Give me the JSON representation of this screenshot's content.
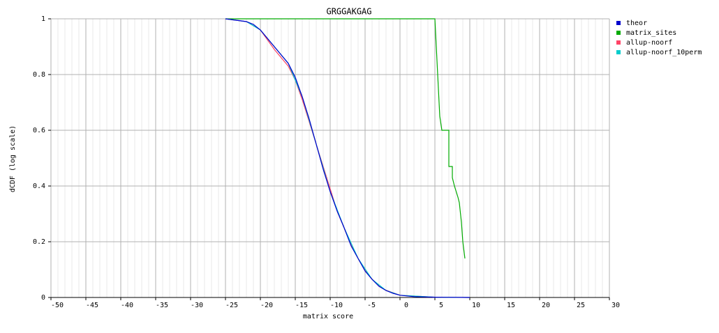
{
  "chart_data": {
    "type": "line",
    "title": "GRGGAKGAG",
    "x_label": "matrix score",
    "y_label": "dCDF (log scale)",
    "xlim": [
      -50,
      30
    ],
    "ylim": [
      0,
      1
    ],
    "xticks": [
      -50,
      -45,
      -40,
      -35,
      -30,
      -25,
      -20,
      -15,
      -10,
      -5,
      0,
      5,
      10,
      15,
      20,
      25,
      30
    ],
    "yticks": [
      0,
      0.2,
      0.4,
      0.6,
      0.8,
      1
    ],
    "grid": true,
    "legend": "right",
    "series": [
      {
        "name": "theor",
        "color": "#0000cc",
        "x": [
          -25,
          -22,
          -21,
          -20,
          -19,
          -18,
          -17,
          -16,
          -15,
          -14,
          -13,
          -12,
          -11,
          -10,
          -9,
          -8,
          -7,
          -6,
          -5,
          -4,
          -3,
          -2,
          -1,
          0,
          2,
          5,
          10
        ],
        "values": [
          1,
          0.99,
          0.98,
          0.96,
          0.93,
          0.9,
          0.87,
          0.84,
          0.79,
          0.72,
          0.64,
          0.55,
          0.46,
          0.38,
          0.31,
          0.25,
          0.185,
          0.14,
          0.095,
          0.065,
          0.04,
          0.025,
          0.015,
          0.008,
          0.003,
          0.001,
          0
        ]
      },
      {
        "name": "matrix_sites",
        "color": "#00aa00",
        "x": [
          -25,
          5,
          5.3,
          5.6,
          5.7,
          6,
          7,
          7,
          7.5,
          7.5,
          7.8,
          8.3,
          8.5,
          8.8,
          9,
          9.3
        ],
        "values": [
          1,
          1,
          0.85,
          0.7,
          0.65,
          0.6,
          0.6,
          0.47,
          0.47,
          0.43,
          0.4,
          0.36,
          0.34,
          0.27,
          0.2,
          0.14
        ]
      },
      {
        "name": "allup-noorf",
        "color": "#ff4466",
        "x": [
          -25,
          -22,
          -20,
          -18,
          -16,
          -15,
          -14,
          -13,
          -12,
          -11,
          -10,
          -9,
          -8,
          -7,
          -6,
          -5,
          -4,
          -3,
          -2,
          0,
          5,
          10
        ],
        "values": [
          1,
          0.99,
          0.96,
          0.89,
          0.83,
          0.78,
          0.71,
          0.63,
          0.55,
          0.47,
          0.39,
          0.31,
          0.25,
          0.19,
          0.14,
          0.097,
          0.066,
          0.041,
          0.026,
          0.008,
          0.001,
          0
        ]
      },
      {
        "name": "allup-noorf_10perm",
        "color": "#00cccc",
        "x": [
          -25,
          -22,
          -20,
          -18,
          -16,
          -14,
          -12,
          -10,
          -8,
          -6,
          -4,
          -2,
          0,
          5,
          10
        ],
        "values": [
          1,
          0.99,
          0.96,
          0.9,
          0.84,
          0.72,
          0.55,
          0.38,
          0.25,
          0.14,
          0.065,
          0.025,
          0.008,
          0.001,
          0
        ]
      }
    ]
  }
}
